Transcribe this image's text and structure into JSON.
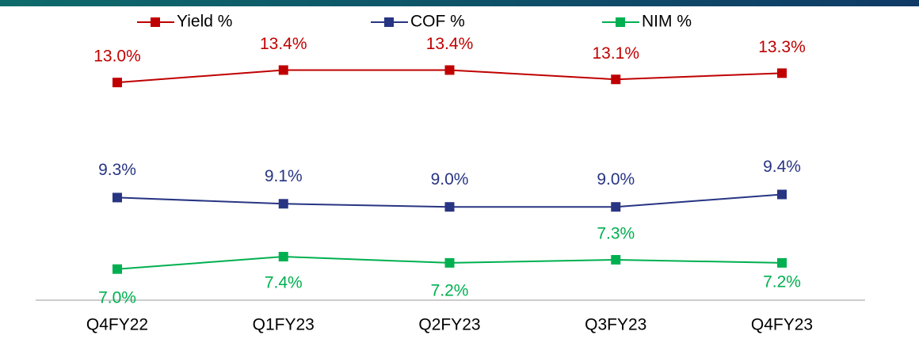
{
  "chart_data": {
    "type": "line",
    "categories": [
      "Q4FY22",
      "Q1FY23",
      "Q2FY23",
      "Q3FY23",
      "Q4FY23"
    ],
    "ylim": [
      6,
      15.5
    ],
    "series": [
      {
        "name": "Yield %",
        "color": "#c00000",
        "values": [
          13.0,
          13.4,
          13.4,
          13.1,
          13.3
        ],
        "value_labels": [
          "13.0%",
          "13.4%",
          "13.4%",
          "13.1%",
          "13.3%"
        ]
      },
      {
        "name": "COF %",
        "color": "#283583",
        "values": [
          9.3,
          9.1,
          9.0,
          9.0,
          9.4
        ],
        "value_labels": [
          "9.3%",
          "9.1%",
          "9.0%",
          "9.0%",
          "9.4%"
        ]
      },
      {
        "name": "NIM %",
        "color": "#00b050",
        "values": [
          7.0,
          7.4,
          7.2,
          7.3,
          7.2
        ],
        "value_labels": [
          "7.0%",
          "7.4%",
          "7.2%",
          "7.3%",
          "7.2%"
        ]
      }
    ]
  }
}
